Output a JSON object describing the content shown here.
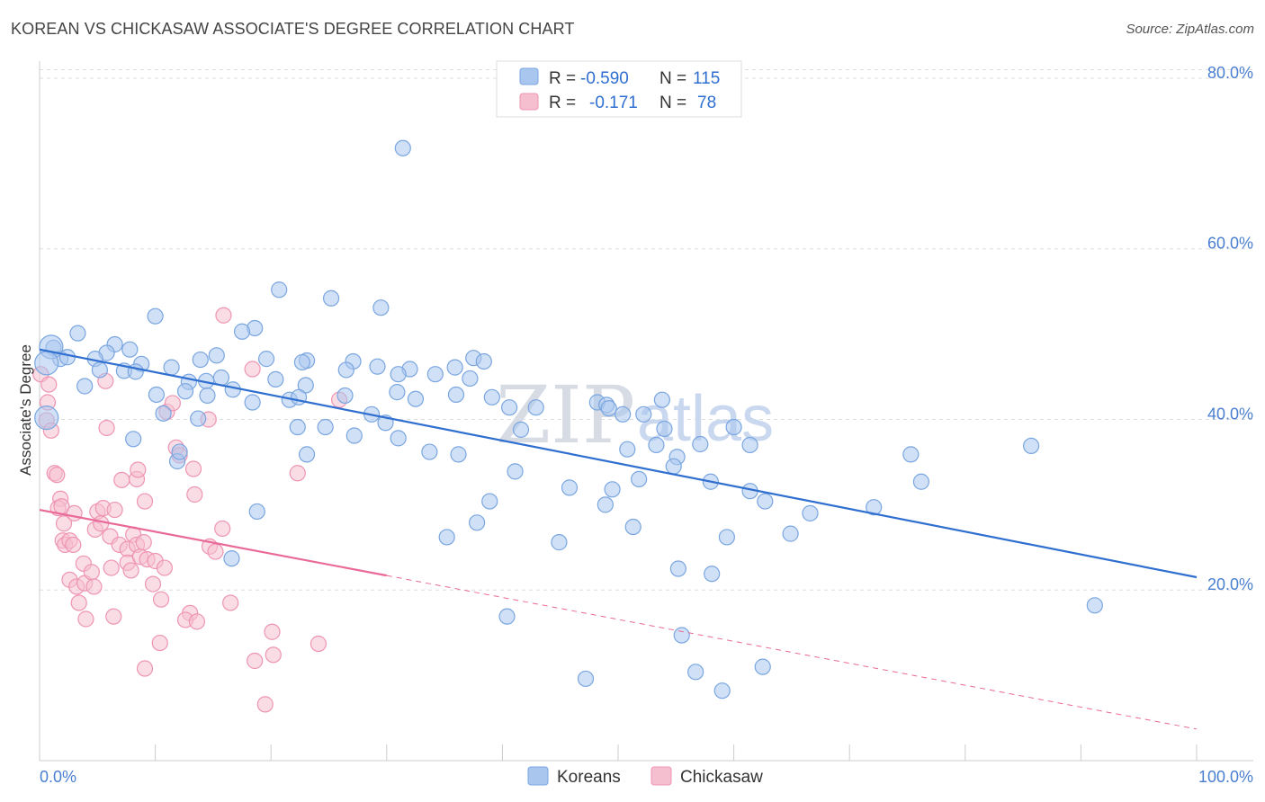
{
  "header": {
    "title": "KOREAN VS CHICKASAW ASSOCIATE'S DEGREE CORRELATION CHART",
    "source": "Source: ZipAtlas.com"
  },
  "watermark": {
    "zip": "ZIP",
    "atlas": "atlas"
  },
  "legend_top": {
    "rows": [
      {
        "r_label": "R =",
        "r_value": "-0.590",
        "n_label": "N =",
        "n_value": "115"
      },
      {
        "r_label": "R =",
        "r_value": "-0.171",
        "n_label": "N =",
        "n_value": "78"
      }
    ]
  },
  "legend_bottom": {
    "items": [
      "Koreans",
      "Chickasaw"
    ]
  },
  "colors": {
    "koreans_fill": "#a9c6ee",
    "koreans_stroke": "#7aa6e0",
    "koreans_line": "#2f6fd0",
    "chickasaw_fill": "#f6bfd0",
    "chickasaw_stroke": "#ee95b3",
    "chickasaw_line": "#e96a98",
    "tick_label": "#4a7fd0",
    "grid": "#dddddd"
  },
  "chart_data": {
    "type": "scatter",
    "title": "KOREAN VS CHICKASAW ASSOCIATE'S DEGREE CORRELATION CHART",
    "xlabel": "",
    "ylabel": "Associate's Degree",
    "xlim": [
      0,
      100
    ],
    "ylim": [
      0,
      82
    ],
    "x_tick_labels": [
      "0.0%",
      "100.0%"
    ],
    "y_ticks": [
      20,
      40,
      60,
      80
    ],
    "y_tick_labels": [
      "20.0%",
      "40.0%",
      "60.0%",
      "80.0%"
    ],
    "grid": "horizontal dashed",
    "legend_position": "top-center",
    "series": [
      {
        "name": "Koreans",
        "trend": {
          "x": [
            0,
            100
          ],
          "y": [
            48.2,
            21.5
          ],
          "dashed_from_x": null
        },
        "points": [
          [
            31.4,
            71.8
          ],
          [
            20.7,
            55.2
          ],
          [
            25.2,
            54.2
          ],
          [
            29.5,
            53.1
          ],
          [
            10.0,
            52.1
          ],
          [
            3.3,
            50.1
          ],
          [
            18.6,
            50.7
          ],
          [
            17.5,
            50.3
          ],
          [
            6.5,
            48.8
          ],
          [
            7.8,
            48.2
          ],
          [
            5.8,
            47.8
          ],
          [
            1.2,
            48.4
          ],
          [
            1.8,
            47.1
          ],
          [
            2.4,
            47.3
          ],
          [
            4.8,
            47.1
          ],
          [
            15.3,
            47.5
          ],
          [
            19.6,
            47.1
          ],
          [
            23.1,
            46.9
          ],
          [
            27.1,
            46.8
          ],
          [
            22.7,
            46.7
          ],
          [
            37.5,
            47.2
          ],
          [
            38.4,
            46.8
          ],
          [
            35.9,
            46.1
          ],
          [
            8.8,
            46.5
          ],
          [
            11.4,
            46.1
          ],
          [
            13.9,
            47.0
          ],
          [
            5.2,
            45.8
          ],
          [
            7.3,
            45.7
          ],
          [
            8.3,
            45.6
          ],
          [
            26.5,
            45.8
          ],
          [
            29.2,
            46.2
          ],
          [
            32.0,
            45.9
          ],
          [
            34.2,
            45.3
          ],
          [
            31.0,
            45.3
          ],
          [
            37.2,
            44.8
          ],
          [
            14.4,
            44.5
          ],
          [
            12.9,
            44.4
          ],
          [
            15.7,
            44.9
          ],
          [
            20.4,
            44.7
          ],
          [
            23.0,
            44.0
          ],
          [
            3.9,
            43.9
          ],
          [
            10.1,
            42.9
          ],
          [
            12.6,
            43.3
          ],
          [
            14.5,
            42.8
          ],
          [
            16.7,
            43.5
          ],
          [
            18.4,
            42.0
          ],
          [
            21.6,
            42.3
          ],
          [
            22.4,
            42.6
          ],
          [
            26.4,
            42.8
          ],
          [
            30.9,
            43.2
          ],
          [
            32.5,
            42.4
          ],
          [
            36.0,
            42.9
          ],
          [
            39.1,
            42.6
          ],
          [
            40.6,
            41.4
          ],
          [
            42.9,
            41.4
          ],
          [
            48.2,
            42.0
          ],
          [
            49.0,
            41.7
          ],
          [
            50.4,
            40.6
          ],
          [
            52.2,
            40.6
          ],
          [
            53.8,
            42.3
          ],
          [
            10.7,
            40.7
          ],
          [
            13.7,
            40.1
          ],
          [
            22.3,
            39.1
          ],
          [
            28.7,
            40.6
          ],
          [
            29.9,
            39.6
          ],
          [
            41.6,
            38.8
          ],
          [
            49.2,
            41.3
          ],
          [
            54.0,
            38.9
          ],
          [
            60.0,
            39.1
          ],
          [
            8.1,
            37.7
          ],
          [
            24.7,
            39.1
          ],
          [
            27.2,
            38.1
          ],
          [
            31.0,
            37.8
          ],
          [
            53.3,
            37.0
          ],
          [
            57.1,
            37.1
          ],
          [
            61.4,
            37.0
          ],
          [
            23.1,
            35.9
          ],
          [
            33.7,
            36.2
          ],
          [
            36.2,
            35.9
          ],
          [
            50.8,
            36.5
          ],
          [
            55.1,
            35.6
          ],
          [
            11.9,
            35.1
          ],
          [
            12.1,
            36.2
          ],
          [
            41.1,
            33.9
          ],
          [
            51.8,
            33.0
          ],
          [
            45.8,
            32.0
          ],
          [
            49.5,
            31.8
          ],
          [
            54.8,
            34.5
          ],
          [
            58.0,
            32.7
          ],
          [
            61.4,
            31.6
          ],
          [
            38.9,
            30.4
          ],
          [
            48.9,
            30.0
          ],
          [
            75.3,
            35.9
          ],
          [
            76.2,
            32.7
          ],
          [
            85.7,
            36.9
          ],
          [
            18.8,
            29.2
          ],
          [
            62.7,
            30.4
          ],
          [
            72.1,
            29.7
          ],
          [
            66.6,
            29.0
          ],
          [
            37.8,
            27.9
          ],
          [
            51.3,
            27.4
          ],
          [
            64.9,
            26.6
          ],
          [
            59.4,
            26.2
          ],
          [
            44.9,
            25.6
          ],
          [
            35.2,
            26.2
          ],
          [
            16.6,
            23.7
          ],
          [
            55.2,
            22.5
          ],
          [
            58.1,
            21.9
          ],
          [
            91.2,
            18.2
          ],
          [
            40.4,
            16.9
          ],
          [
            55.5,
            14.7
          ],
          [
            56.7,
            10.4
          ],
          [
            47.2,
            9.6
          ],
          [
            62.5,
            11.0
          ],
          [
            59.0,
            8.2
          ]
        ],
        "large_points": [
          [
            1.0,
            48.5
          ],
          [
            0.6,
            46.6
          ],
          [
            0.6,
            40.2
          ]
        ]
      },
      {
        "name": "Chickasaw",
        "trend": {
          "x": [
            0,
            30,
            100
          ],
          "y": [
            29.4,
            21.7,
            3.7
          ],
          "dashed_from_x": 30
        },
        "points": [
          [
            0.7,
            42.0
          ],
          [
            0.6,
            39.9
          ],
          [
            1.0,
            38.7
          ],
          [
            1.3,
            33.7
          ],
          [
            1.5,
            33.5
          ],
          [
            1.8,
            30.7
          ],
          [
            1.6,
            29.6
          ],
          [
            1.9,
            29.8
          ],
          [
            2.1,
            27.8
          ],
          [
            2.0,
            25.8
          ],
          [
            2.2,
            25.3
          ],
          [
            2.6,
            25.8
          ],
          [
            2.9,
            25.3
          ],
          [
            3.0,
            29.0
          ],
          [
            2.6,
            21.2
          ],
          [
            3.2,
            20.4
          ],
          [
            3.8,
            23.1
          ],
          [
            3.9,
            20.8
          ],
          [
            3.4,
            18.5
          ],
          [
            4.0,
            16.6
          ],
          [
            4.5,
            22.1
          ],
          [
            4.7,
            20.4
          ],
          [
            4.8,
            27.1
          ],
          [
            5.0,
            29.2
          ],
          [
            5.3,
            27.8
          ],
          [
            5.5,
            29.6
          ],
          [
            6.1,
            26.3
          ],
          [
            6.2,
            22.6
          ],
          [
            6.5,
            29.4
          ],
          [
            6.9,
            25.3
          ],
          [
            6.4,
            16.9
          ],
          [
            5.8,
            39.0
          ],
          [
            5.7,
            44.5
          ],
          [
            7.1,
            32.9
          ],
          [
            7.6,
            24.8
          ],
          [
            7.6,
            23.2
          ],
          [
            7.9,
            22.3
          ],
          [
            8.4,
            33.0
          ],
          [
            8.5,
            34.1
          ],
          [
            8.1,
            26.5
          ],
          [
            8.4,
            25.3
          ],
          [
            8.7,
            23.9
          ],
          [
            9.0,
            25.6
          ],
          [
            9.1,
            30.4
          ],
          [
            9.3,
            23.6
          ],
          [
            9.8,
            20.7
          ],
          [
            10.0,
            23.4
          ],
          [
            10.5,
            18.9
          ],
          [
            10.8,
            22.6
          ],
          [
            11.0,
            40.9
          ],
          [
            11.5,
            41.9
          ],
          [
            11.8,
            36.7
          ],
          [
            12.1,
            35.8
          ],
          [
            13.0,
            17.3
          ],
          [
            13.3,
            34.2
          ],
          [
            13.4,
            31.2
          ],
          [
            12.6,
            16.5
          ],
          [
            13.6,
            16.3
          ],
          [
            14.6,
            40.0
          ],
          [
            14.7,
            25.1
          ],
          [
            15.2,
            24.5
          ],
          [
            15.8,
            27.2
          ],
          [
            16.5,
            18.5
          ],
          [
            10.4,
            13.8
          ],
          [
            9.1,
            10.8
          ],
          [
            18.4,
            45.9
          ],
          [
            15.9,
            52.2
          ],
          [
            18.6,
            11.7
          ],
          [
            20.1,
            15.1
          ],
          [
            20.2,
            12.4
          ],
          [
            19.5,
            6.6
          ],
          [
            22.3,
            33.7
          ],
          [
            24.1,
            13.7
          ],
          [
            25.9,
            42.3
          ],
          [
            0.1,
            45.3
          ],
          [
            0.8,
            44.1
          ]
        ]
      }
    ]
  }
}
